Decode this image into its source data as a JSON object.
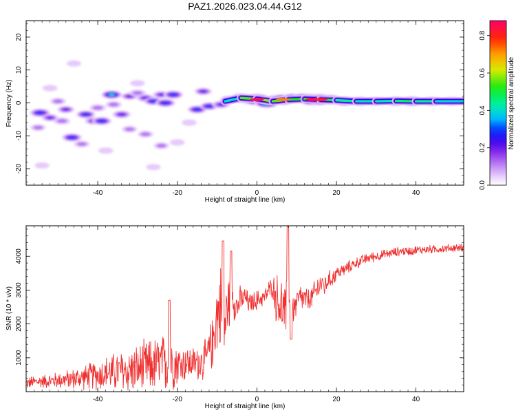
{
  "title": "PAZ1.2026.023.04.44.G12",
  "chart_data": [
    {
      "type": "heatmap",
      "name": "spectrogram",
      "xlabel": "Height of straight line (km)",
      "ylabel": "Frequency (Hz)",
      "xlim": [
        -58,
        52
      ],
      "ylim": [
        -25,
        25
      ],
      "xticks": [
        -40,
        -20,
        0,
        20,
        40
      ],
      "yticks": [
        -20,
        -10,
        0,
        10,
        20
      ],
      "colorbar": {
        "label": "Normalized spectral amplitude",
        "range": [
          0.0,
          0.88
        ],
        "ticks": [
          0.0,
          0.2,
          0.4,
          0.6,
          0.8
        ],
        "tick_labels": [
          "0.0",
          "0.2",
          "0.4",
          "0.6",
          "0.8"
        ]
      },
      "blobs": [
        {
          "x": -54.5,
          "y": -3.0,
          "v": 0.4
        },
        {
          "x": -52.0,
          "y": -4.5,
          "v": 0.2
        },
        {
          "x": -55.0,
          "y": -7.5,
          "v": 0.12
        },
        {
          "x": -50.0,
          "y": 0.5,
          "v": 0.15
        },
        {
          "x": -48.0,
          "y": -2.0,
          "v": 0.22
        },
        {
          "x": -49.0,
          "y": -5.5,
          "v": 0.18
        },
        {
          "x": -46.5,
          "y": -10.5,
          "v": 0.38
        },
        {
          "x": -44.0,
          "y": -12.5,
          "v": 0.14
        },
        {
          "x": -43.0,
          "y": -3.5,
          "v": 0.32
        },
        {
          "x": -41.0,
          "y": -5.5,
          "v": 0.25
        },
        {
          "x": -39.0,
          "y": -5.5,
          "v": 0.36
        },
        {
          "x": -40.0,
          "y": -1.5,
          "v": 0.18
        },
        {
          "x": -36.0,
          "y": -0.5,
          "v": 0.16
        },
        {
          "x": -34.0,
          "y": -3.5,
          "v": 0.28
        },
        {
          "x": -36.5,
          "y": 2.5,
          "v": 0.42
        },
        {
          "x": -32.0,
          "y": 2.0,
          "v": 0.2
        },
        {
          "x": -30.0,
          "y": 3.0,
          "v": 0.18
        },
        {
          "x": -28.0,
          "y": 1.5,
          "v": 0.26
        },
        {
          "x": -26.0,
          "y": 0.5,
          "v": 0.32
        },
        {
          "x": -24.0,
          "y": 2.5,
          "v": 0.2
        },
        {
          "x": -21.0,
          "y": 2.5,
          "v": 0.36
        },
        {
          "x": -23.0,
          "y": 0.0,
          "v": 0.38
        },
        {
          "x": -32.0,
          "y": -8.0,
          "v": 0.12
        },
        {
          "x": -28.0,
          "y": -9.5,
          "v": 0.14
        },
        {
          "x": -24.0,
          "y": -13.0,
          "v": 0.12
        },
        {
          "x": -38.0,
          "y": -14.5,
          "v": 0.1
        },
        {
          "x": -20.0,
          "y": -12.0,
          "v": 0.1
        },
        {
          "x": -17.0,
          "y": -6.0,
          "v": 0.1
        },
        {
          "x": -15.0,
          "y": -2.0,
          "v": 0.34
        },
        {
          "x": -12.0,
          "y": -1.0,
          "v": 0.3
        },
        {
          "x": -13.5,
          "y": 3.5,
          "v": 0.24
        },
        {
          "x": -9.0,
          "y": -0.5,
          "v": 0.26
        },
        {
          "x": -7.0,
          "y": 1.0,
          "v": 0.28
        },
        {
          "x": -4.0,
          "y": 1.5,
          "v": 0.45
        },
        {
          "x": -1.5,
          "y": 1.0,
          "v": 0.55
        },
        {
          "x": 0.0,
          "y": 1.0,
          "v": 0.85
        },
        {
          "x": 2.5,
          "y": 0.0,
          "v": 0.65
        },
        {
          "x": 5.0,
          "y": 1.0,
          "v": 0.55
        },
        {
          "x": 6.5,
          "y": 1.0,
          "v": 0.72
        },
        {
          "x": 9.0,
          "y": 1.5,
          "v": 0.45
        },
        {
          "x": 11.5,
          "y": 1.5,
          "v": 0.5
        },
        {
          "x": 14.0,
          "y": 1.0,
          "v": 0.85
        },
        {
          "x": 16.0,
          "y": 1.0,
          "v": 0.8
        },
        {
          "x": 18.5,
          "y": 1.0,
          "v": 0.55
        },
        {
          "x": 22.0,
          "y": 0.5,
          "v": 0.5
        },
        {
          "x": 26.0,
          "y": 0.5,
          "v": 0.45
        },
        {
          "x": 30.0,
          "y": 0.5,
          "v": 0.4
        },
        {
          "x": 35.0,
          "y": 0.5,
          "v": 0.48
        },
        {
          "x": 39.0,
          "y": 0.5,
          "v": 0.55
        },
        {
          "x": 44.0,
          "y": 0.5,
          "v": 0.42
        },
        {
          "x": 49.0,
          "y": 0.5,
          "v": 0.4
        },
        {
          "x": -46.0,
          "y": 12.0,
          "v": 0.08
        },
        {
          "x": -54.0,
          "y": -19.0,
          "v": 0.08
        },
        {
          "x": -26.0,
          "y": -19.5,
          "v": 0.08
        },
        {
          "x": -30.0,
          "y": 6.0,
          "v": 0.09
        },
        {
          "x": -52.0,
          "y": 4.5,
          "v": 0.09
        }
      ],
      "ridge": {
        "x": [
          -8,
          -4,
          0,
          4,
          8,
          12,
          16,
          20,
          25,
          30,
          35,
          40,
          45,
          52
        ],
        "y": [
          0.5,
          1.5,
          1.2,
          0.5,
          1.0,
          1.2,
          1.0,
          0.8,
          0.5,
          0.5,
          0.6,
          0.5,
          0.5,
          0.5
        ],
        "v": [
          0.3,
          0.5,
          0.6,
          0.55,
          0.55,
          0.5,
          0.55,
          0.45,
          0.42,
          0.4,
          0.45,
          0.48,
          0.4,
          0.38
        ]
      }
    },
    {
      "type": "line",
      "name": "snr",
      "xlabel": "Height of straight line (km)",
      "ylabel": "SNR (10 * v/v)",
      "xlim": [
        -58,
        52
      ],
      "ylim": [
        0,
        4900
      ],
      "xticks": [
        -40,
        -20,
        0,
        20,
        40
      ],
      "yticks": [
        1000,
        2000,
        3000,
        4000
      ],
      "color": "#f03030",
      "x": [
        -58,
        -55,
        -52,
        -49,
        -46,
        -43,
        -40,
        -37,
        -34,
        -31,
        -28,
        -25,
        -22,
        -19,
        -16,
        -13,
        -11,
        -10,
        -9,
        -8,
        -7,
        -6,
        -5,
        -4,
        -3,
        -2,
        -1,
        0,
        1,
        2,
        3,
        4,
        5,
        6,
        7,
        8,
        9,
        10,
        11,
        12,
        13,
        14,
        15,
        16,
        17,
        18,
        19,
        20,
        22,
        24,
        26,
        28,
        30,
        32,
        34,
        36,
        38,
        40,
        42,
        44,
        46,
        48,
        50,
        52
      ],
      "y": [
        250,
        300,
        320,
        350,
        380,
        430,
        500,
        560,
        600,
        640,
        720,
        800,
        860,
        820,
        840,
        900,
        1500,
        2300,
        2600,
        2000,
        2700,
        2800,
        2500,
        2700,
        2800,
        2600,
        2650,
        2700,
        2750,
        2800,
        3000,
        3100,
        2700,
        2600,
        2300,
        2400,
        2400,
        2600,
        2800,
        2700,
        2700,
        2800,
        3000,
        3200,
        3100,
        3300,
        3350,
        3500,
        3600,
        3750,
        3850,
        3950,
        4000,
        4050,
        4100,
        4150,
        4150,
        4180,
        4200,
        4200,
        4220,
        4230,
        4250,
        4250
      ],
      "amp": [
        200,
        220,
        250,
        300,
        350,
        420,
        520,
        620,
        720,
        800,
        900,
        950,
        1000,
        650,
        550,
        700,
        900,
        1400,
        1400,
        1300,
        900,
        700,
        600,
        500,
        380,
        350,
        330,
        350,
        300,
        300,
        320,
        380,
        900,
        1000,
        900,
        1400,
        500,
        500,
        450,
        450,
        400,
        400,
        450,
        450,
        350,
        300,
        300,
        250,
        220,
        200,
        190,
        180,
        170,
        160,
        160,
        150,
        150,
        150,
        150,
        140,
        140,
        140,
        140,
        140
      ]
    }
  ]
}
